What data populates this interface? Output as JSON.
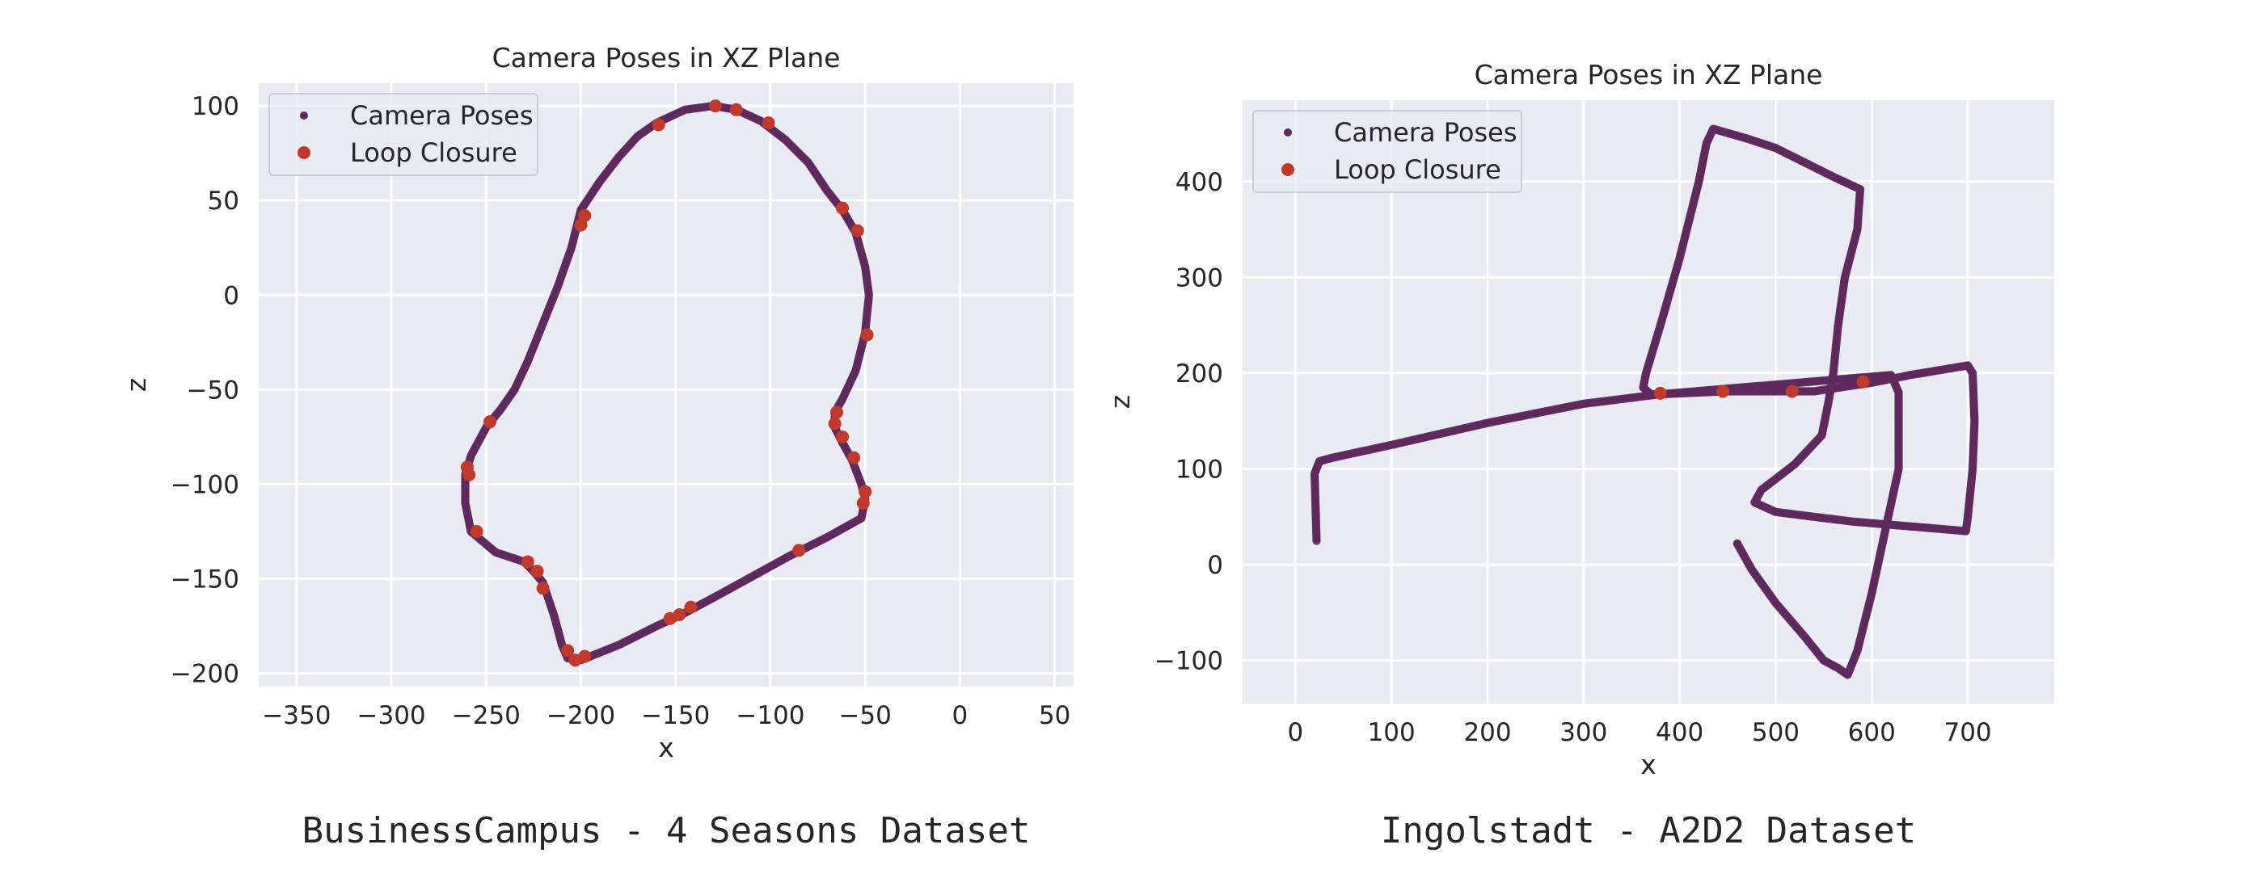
{
  "chart_data": [
    {
      "type": "scatter",
      "title": "Camera Poses in XZ Plane",
      "xlabel": "x",
      "ylabel": "z",
      "caption": "BusinessCampus - 4 Seasons Dataset",
      "xlim": [
        -370,
        60
      ],
      "ylim": [
        -207,
        112
      ],
      "xticks": [
        -350,
        -300,
        -250,
        -200,
        -150,
        -100,
        -50,
        0,
        50
      ],
      "yticks": [
        -200,
        -150,
        -100,
        -50,
        0,
        50,
        100
      ],
      "xtick_labels": [
        "−350",
        "−300",
        "−250",
        "−200",
        "−150",
        "−100",
        "−50",
        "0",
        "50"
      ],
      "ytick_labels": [
        "−200",
        "−150",
        "−100",
        "−50",
        "0",
        "50",
        "100"
      ],
      "grid": true,
      "legend_position": "top-left",
      "series": [
        {
          "name": "Camera Poses",
          "color": "#5e2a5e",
          "marker": "small-dot",
          "values": [
            [
              -130,
              100
            ],
            [
              -118,
              98
            ],
            [
              -105,
              92
            ],
            [
              -92,
              82
            ],
            [
              -80,
              70
            ],
            [
              -70,
              55
            ],
            [
              -62,
              45
            ],
            [
              -55,
              33
            ],
            [
              -50,
              15
            ],
            [
              -48,
              0
            ],
            [
              -50,
              -20
            ],
            [
              -55,
              -40
            ],
            [
              -62,
              -55
            ],
            [
              -66,
              -62
            ],
            [
              -66,
              -70
            ],
            [
              -62,
              -78
            ],
            [
              -57,
              -87
            ],
            [
              -52,
              -100
            ],
            [
              -50,
              -108
            ],
            [
              -52,
              -118
            ],
            [
              -70,
              -128
            ],
            [
              -90,
              -138
            ],
            [
              -110,
              -149
            ],
            [
              -130,
              -160
            ],
            [
              -145,
              -168
            ],
            [
              -160,
              -175
            ],
            [
              -180,
              -185
            ],
            [
              -200,
              -193
            ],
            [
              -207,
              -192
            ],
            [
              -210,
              -185
            ],
            [
              -214,
              -170
            ],
            [
              -218,
              -158
            ],
            [
              -220,
              -152
            ],
            [
              -225,
              -146
            ],
            [
              -230,
              -141
            ],
            [
              -245,
              -136
            ],
            [
              -258,
              -125
            ],
            [
              -261,
              -110
            ],
            [
              -261,
              -95
            ],
            [
              -258,
              -85
            ],
            [
              -250,
              -70
            ],
            [
              -242,
              -60
            ],
            [
              -235,
              -50
            ],
            [
              -228,
              -35
            ],
            [
              -220,
              -15
            ],
            [
              -212,
              5
            ],
            [
              -205,
              25
            ],
            [
              -200,
              45
            ],
            [
              -190,
              60
            ],
            [
              -180,
              73
            ],
            [
              -170,
              84
            ],
            [
              -160,
              91
            ],
            [
              -145,
              98
            ],
            [
              -130,
              100
            ]
          ]
        },
        {
          "name": "Loop Closure",
          "color": "#c0392b",
          "marker": "dot",
          "values": [
            [
              -129,
              100
            ],
            [
              -118,
              98
            ],
            [
              -101,
              91
            ],
            [
              -159,
              90
            ],
            [
              -62,
              46
            ],
            [
              -54,
              34
            ],
            [
              -198,
              42
            ],
            [
              -200,
              37
            ],
            [
              -49,
              -21
            ],
            [
              -65,
              -62
            ],
            [
              -66,
              -68
            ],
            [
              -62,
              -75
            ],
            [
              -56,
              -86
            ],
            [
              -50,
              -104
            ],
            [
              -51,
              -110
            ],
            [
              -248,
              -67
            ],
            [
              -260,
              -91
            ],
            [
              -259,
              -95
            ],
            [
              -255,
              -125
            ],
            [
              -228,
              -141
            ],
            [
              -223,
              -146
            ],
            [
              -220,
              -155
            ],
            [
              -85,
              -135
            ],
            [
              -142,
              -165
            ],
            [
              -148,
              -169
            ],
            [
              -153,
              -171
            ],
            [
              -207,
              -188
            ],
            [
              -203,
              -193
            ],
            [
              -198,
              -191
            ]
          ]
        }
      ]
    },
    {
      "type": "scatter",
      "title": "Camera Poses in XZ Plane",
      "xlabel": "x",
      "ylabel": "z",
      "caption": "Ingolstadt - A2D2 Dataset",
      "xlim": [
        -55,
        790
      ],
      "ylim": [
        -145,
        485
      ],
      "xticks": [
        0,
        100,
        200,
        300,
        400,
        500,
        600,
        700
      ],
      "yticks": [
        -100,
        0,
        100,
        200,
        300,
        400
      ],
      "xtick_labels": [
        "0",
        "100",
        "200",
        "300",
        "400",
        "500",
        "600",
        "700"
      ],
      "ytick_labels": [
        "−100",
        "0",
        "100",
        "200",
        "300",
        "400"
      ],
      "grid": true,
      "legend_position": "top-left",
      "series": [
        {
          "name": "Camera Poses",
          "color": "#5e2a5e",
          "marker": "small-dot",
          "values": [
            [
              22,
              25
            ],
            [
              21,
              60
            ],
            [
              20,
              95
            ],
            [
              25,
              108
            ],
            [
              40,
              112
            ],
            [
              100,
              125
            ],
            [
              200,
              148
            ],
            [
              300,
              168
            ],
            [
              380,
              178
            ],
            [
              450,
              181
            ],
            [
              540,
              181
            ],
            [
              600,
              190
            ],
            [
              640,
              198
            ],
            [
              700,
              208
            ],
            [
              705,
              200
            ],
            [
              707,
              150
            ],
            [
              705,
              100
            ],
            [
              700,
              50
            ],
            [
              698,
              35
            ],
            [
              640,
              40
            ],
            [
              580,
              45
            ],
            [
              500,
              55
            ],
            [
              478,
              65
            ],
            [
              485,
              78
            ],
            [
              520,
              105
            ],
            [
              548,
              135
            ],
            [
              555,
              170
            ],
            [
              560,
              200
            ],
            [
              565,
              250
            ],
            [
              572,
              300
            ],
            [
              585,
              350
            ],
            [
              588,
              392
            ],
            [
              560,
              405
            ],
            [
              530,
              420
            ],
            [
              500,
              435
            ],
            [
              470,
              445
            ],
            [
              435,
              455
            ],
            [
              428,
              440
            ],
            [
              420,
              400
            ],
            [
              400,
              320
            ],
            [
              380,
              250
            ],
            [
              365,
              200
            ],
            [
              362,
              185
            ],
            [
              370,
              178
            ],
            [
              380,
              178
            ],
            [
              620,
              198
            ],
            [
              628,
              180
            ],
            [
              628,
              100
            ],
            [
              615,
              40
            ],
            [
              600,
              -30
            ],
            [
              585,
              -90
            ],
            [
              575,
              -115
            ],
            [
              565,
              -108
            ],
            [
              550,
              -100
            ],
            [
              530,
              -75
            ],
            [
              500,
              -40
            ],
            [
              475,
              -5
            ],
            [
              460,
              22
            ]
          ]
        },
        {
          "name": "Loop Closure",
          "color": "#c0392b",
          "marker": "dot",
          "values": [
            [
              380,
              179
            ],
            [
              445,
              181
            ],
            [
              517,
              181
            ],
            [
              591,
              191
            ]
          ]
        }
      ]
    }
  ]
}
